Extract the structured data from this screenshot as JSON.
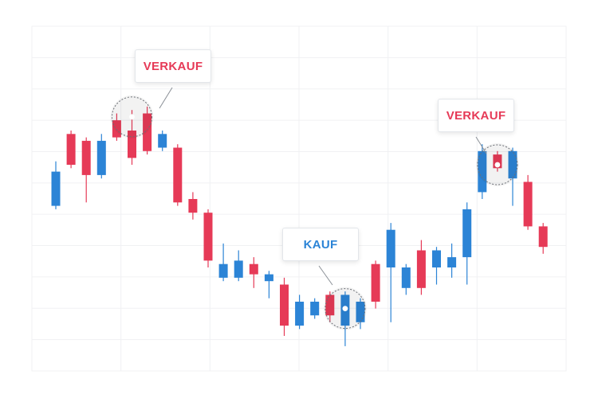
{
  "chart_data": {
    "type": "candlestick",
    "colors": {
      "up": "#2c84d6",
      "down": "#e63a57",
      "grid": "#f0f1f3"
    },
    "grid": true,
    "ylim": [
      0,
      100
    ],
    "candles": [
      {
        "o": 48,
        "c": 58,
        "h": 61,
        "l": 47,
        "dir": "up"
      },
      {
        "o": 69,
        "c": 60,
        "h": 70,
        "l": 59,
        "dir": "down"
      },
      {
        "o": 67,
        "c": 57,
        "h": 68,
        "l": 49,
        "dir": "down"
      },
      {
        "o": 57,
        "c": 67,
        "h": 69,
        "l": 56,
        "dir": "up"
      },
      {
        "o": 73,
        "c": 68,
        "h": 75,
        "l": 67,
        "dir": "down"
      },
      {
        "o": 70,
        "c": 62,
        "h": 76,
        "l": 60,
        "dir": "down"
      },
      {
        "o": 75,
        "c": 64,
        "h": 77,
        "l": 63,
        "dir": "down"
      },
      {
        "o": 65,
        "c": 69,
        "h": 70,
        "l": 64,
        "dir": "up"
      },
      {
        "o": 65,
        "c": 49,
        "h": 66,
        "l": 48,
        "dir": "down"
      },
      {
        "o": 50,
        "c": 46,
        "h": 52,
        "l": 44,
        "dir": "down"
      },
      {
        "o": 46,
        "c": 32,
        "h": 47,
        "l": 30,
        "dir": "down"
      },
      {
        "o": 27,
        "c": 31,
        "h": 37,
        "l": 26,
        "dir": "up"
      },
      {
        "o": 27,
        "c": 32,
        "h": 35,
        "l": 26,
        "dir": "up"
      },
      {
        "o": 31,
        "c": 28,
        "h": 33,
        "l": 24,
        "dir": "down"
      },
      {
        "o": 26,
        "c": 28,
        "h": 29,
        "l": 21,
        "dir": "up"
      },
      {
        "o": 25,
        "c": 13,
        "h": 27,
        "l": 10,
        "dir": "down"
      },
      {
        "o": 13,
        "c": 20,
        "h": 22,
        "l": 12,
        "dir": "up"
      },
      {
        "o": 16,
        "c": 20,
        "h": 21,
        "l": 15,
        "dir": "up"
      },
      {
        "o": 22,
        "c": 16,
        "h": 23,
        "l": 14,
        "dir": "down"
      },
      {
        "o": 13,
        "c": 22,
        "h": 23,
        "l": 7,
        "dir": "up"
      },
      {
        "o": 14,
        "c": 20,
        "h": 21,
        "l": 12,
        "dir": "up"
      },
      {
        "o": 31,
        "c": 20,
        "h": 32,
        "l": 18,
        "dir": "down"
      },
      {
        "o": 30,
        "c": 41,
        "h": 43,
        "l": 14,
        "dir": "up"
      },
      {
        "o": 24,
        "c": 30,
        "h": 31,
        "l": 22,
        "dir": "up"
      },
      {
        "o": 35,
        "c": 24,
        "h": 38,
        "l": 22,
        "dir": "down"
      },
      {
        "o": 30,
        "c": 35,
        "h": 36,
        "l": 25,
        "dir": "up"
      },
      {
        "o": 30,
        "c": 33,
        "h": 37,
        "l": 27,
        "dir": "up"
      },
      {
        "o": 33,
        "c": 47,
        "h": 49,
        "l": 25,
        "dir": "up"
      },
      {
        "o": 52,
        "c": 64,
        "h": 66,
        "l": 50,
        "dir": "up"
      },
      {
        "o": 63,
        "c": 59,
        "h": 64,
        "l": 58,
        "dir": "down"
      },
      {
        "o": 56,
        "c": 64,
        "h": 65,
        "l": 48,
        "dir": "up"
      },
      {
        "o": 55,
        "c": 42,
        "h": 57,
        "l": 41,
        "dir": "down"
      },
      {
        "o": 42,
        "c": 36,
        "h": 43,
        "l": 34,
        "dir": "down"
      }
    ],
    "annotations": [
      {
        "label": "VERKAUF",
        "candle": 5,
        "color": "#e63a57",
        "price": 74
      },
      {
        "label": "KAUF",
        "candle": 19,
        "color": "#2c84d6",
        "price": 18
      },
      {
        "label": "VERKAUF",
        "candle": 29,
        "color": "#e63a57",
        "price": 60
      }
    ]
  }
}
